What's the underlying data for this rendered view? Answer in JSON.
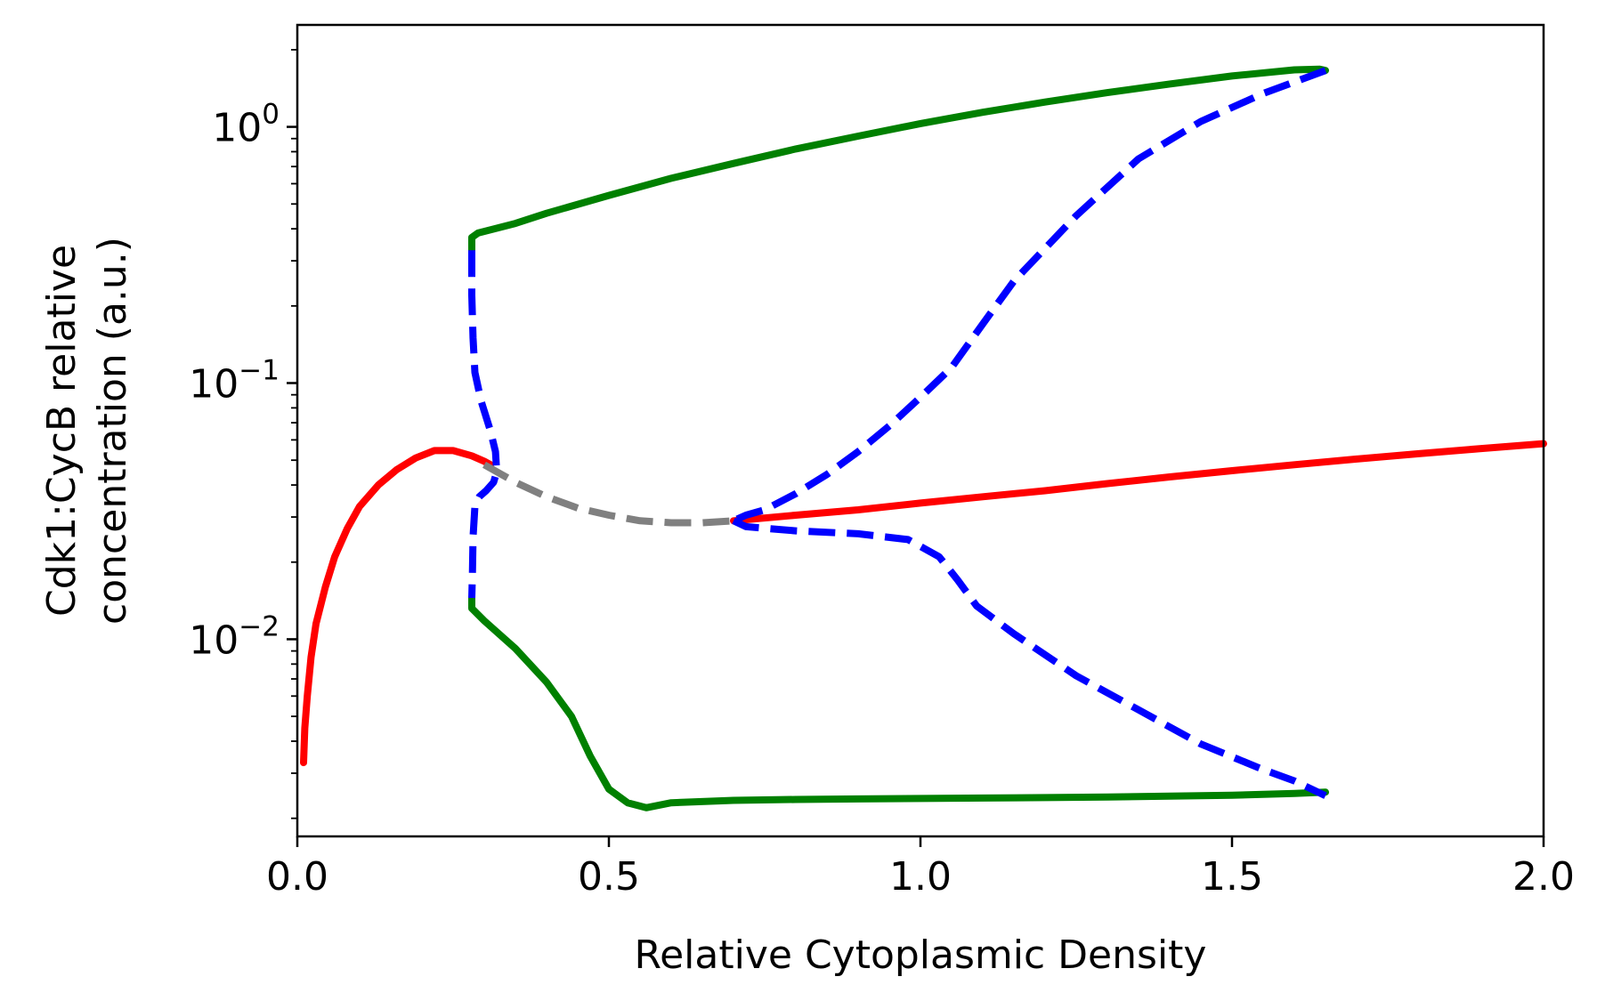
{
  "chart_data": {
    "type": "line",
    "title": "",
    "xlabel": "Relative Cytoplasmic Density",
    "ylabel_lines": [
      "Cdk1:CycB relative",
      "concentration (a.u.)"
    ],
    "xlim": [
      0.0,
      2.0
    ],
    "ylim": [
      0.0017,
      2.5
    ],
    "yscale": "log",
    "grid": false,
    "legend": "none",
    "x_ticks": [
      {
        "value": 0.0,
        "label": "0.0"
      },
      {
        "value": 0.5,
        "label": "0.5"
      },
      {
        "value": 1.0,
        "label": "1.0"
      },
      {
        "value": 1.5,
        "label": "1.5"
      },
      {
        "value": 2.0,
        "label": "2.0"
      }
    ],
    "y_ticks": [
      {
        "value": 1.0,
        "base": "10",
        "exp": "0"
      },
      {
        "value": 0.1,
        "base": "10",
        "exp": "−1"
      },
      {
        "value": 0.01,
        "base": "10",
        "exp": "−2"
      }
    ],
    "series": [
      {
        "key": "stable-steady-state-low",
        "color": "#ff0000",
        "dash": "solid",
        "points": [
          [
            0.01,
            0.0033
          ],
          [
            0.012,
            0.0045
          ],
          [
            0.016,
            0.006
          ],
          [
            0.022,
            0.0085
          ],
          [
            0.03,
            0.0115
          ],
          [
            0.045,
            0.016
          ],
          [
            0.06,
            0.021
          ],
          [
            0.08,
            0.027
          ],
          [
            0.1,
            0.033
          ],
          [
            0.13,
            0.04
          ],
          [
            0.16,
            0.046
          ],
          [
            0.19,
            0.051
          ],
          [
            0.22,
            0.0545
          ],
          [
            0.25,
            0.0545
          ],
          [
            0.28,
            0.052
          ],
          [
            0.3,
            0.0495
          ],
          [
            0.31,
            0.048
          ]
        ]
      },
      {
        "key": "stable-steady-state-high",
        "color": "#ff0000",
        "dash": "solid",
        "points": [
          [
            0.7,
            0.029
          ],
          [
            0.8,
            0.0305
          ],
          [
            0.9,
            0.032
          ],
          [
            1.0,
            0.034
          ],
          [
            1.1,
            0.036
          ],
          [
            1.2,
            0.038
          ],
          [
            1.3,
            0.0405
          ],
          [
            1.4,
            0.043
          ],
          [
            1.5,
            0.0455
          ],
          [
            1.6,
            0.048
          ],
          [
            1.7,
            0.0505
          ],
          [
            1.8,
            0.053
          ],
          [
            1.9,
            0.0555
          ],
          [
            2.0,
            0.058
          ]
        ]
      },
      {
        "key": "unstable-steady-state",
        "color": "#808080",
        "dash": "dashed",
        "points": [
          [
            0.3,
            0.048
          ],
          [
            0.35,
            0.041
          ],
          [
            0.4,
            0.036
          ],
          [
            0.45,
            0.0325
          ],
          [
            0.5,
            0.0305
          ],
          [
            0.55,
            0.029
          ],
          [
            0.6,
            0.0285
          ],
          [
            0.65,
            0.0285
          ],
          [
            0.7,
            0.029
          ]
        ]
      },
      {
        "key": "stable-limit-cycle-max",
        "color": "#008000",
        "dash": "solid",
        "points": [
          [
            0.28,
            0.3
          ],
          [
            0.28,
            0.37
          ],
          [
            0.29,
            0.385
          ],
          [
            0.35,
            0.42
          ],
          [
            0.4,
            0.46
          ],
          [
            0.5,
            0.54
          ],
          [
            0.6,
            0.63
          ],
          [
            0.7,
            0.72
          ],
          [
            0.8,
            0.82
          ],
          [
            0.9,
            0.92
          ],
          [
            1.0,
            1.03
          ],
          [
            1.1,
            1.14
          ],
          [
            1.2,
            1.25
          ],
          [
            1.3,
            1.36
          ],
          [
            1.4,
            1.47
          ],
          [
            1.5,
            1.58
          ],
          [
            1.6,
            1.67
          ],
          [
            1.64,
            1.68
          ],
          [
            1.65,
            1.66
          ]
        ]
      },
      {
        "key": "stable-limit-cycle-min",
        "color": "#008000",
        "dash": "solid",
        "points": [
          [
            0.28,
            0.0145
          ],
          [
            0.28,
            0.0132
          ],
          [
            0.3,
            0.0118
          ],
          [
            0.35,
            0.0092
          ],
          [
            0.4,
            0.0068
          ],
          [
            0.44,
            0.005
          ],
          [
            0.47,
            0.0035
          ],
          [
            0.5,
            0.0026
          ],
          [
            0.53,
            0.0023
          ],
          [
            0.56,
            0.0022
          ],
          [
            0.6,
            0.0023
          ],
          [
            0.7,
            0.00235
          ],
          [
            0.8,
            0.00237
          ],
          [
            0.9,
            0.00238
          ],
          [
            1.0,
            0.00239
          ],
          [
            1.1,
            0.0024
          ],
          [
            1.2,
            0.00241
          ],
          [
            1.3,
            0.00242
          ],
          [
            1.4,
            0.00244
          ],
          [
            1.5,
            0.00246
          ],
          [
            1.6,
            0.0025
          ],
          [
            1.65,
            0.00253
          ]
        ]
      },
      {
        "key": "unstable-limit-cycle-max",
        "color": "#0000ff",
        "dash": "dashed",
        "points": [
          [
            1.65,
            1.66
          ],
          [
            1.55,
            1.35
          ],
          [
            1.45,
            1.05
          ],
          [
            1.35,
            0.75
          ],
          [
            1.25,
            0.45
          ],
          [
            1.15,
            0.25
          ],
          [
            1.1,
            0.17
          ],
          [
            1.05,
            0.115
          ],
          [
            1.0,
            0.088
          ],
          [
            0.95,
            0.068
          ],
          [
            0.9,
            0.054
          ],
          [
            0.85,
            0.044
          ],
          [
            0.8,
            0.037
          ],
          [
            0.75,
            0.032
          ],
          [
            0.72,
            0.0305
          ],
          [
            0.7,
            0.029
          ]
        ]
      },
      {
        "key": "unstable-limit-cycle-min",
        "color": "#0000ff",
        "dash": "dashed",
        "points": [
          [
            0.7,
            0.029
          ],
          [
            0.72,
            0.0275
          ],
          [
            0.8,
            0.0265
          ],
          [
            0.9,
            0.0258
          ],
          [
            0.98,
            0.0245
          ],
          [
            1.03,
            0.021
          ],
          [
            1.06,
            0.017
          ],
          [
            1.09,
            0.0135
          ],
          [
            1.15,
            0.0105
          ],
          [
            1.25,
            0.0072
          ],
          [
            1.35,
            0.0053
          ],
          [
            1.45,
            0.0039
          ],
          [
            1.55,
            0.0031
          ],
          [
            1.6,
            0.0028
          ],
          [
            1.65,
            0.00245
          ]
        ]
      },
      {
        "key": "unstable-limit-cycle-fold",
        "color": "#0000ff",
        "dash": "dashed",
        "points": [
          [
            0.28,
            0.33
          ],
          [
            0.28,
            0.22
          ],
          [
            0.282,
            0.15
          ],
          [
            0.285,
            0.11
          ],
          [
            0.295,
            0.085
          ],
          [
            0.31,
            0.065
          ],
          [
            0.318,
            0.054
          ],
          [
            0.32,
            0.045
          ],
          [
            0.315,
            0.041
          ],
          [
            0.303,
            0.038
          ],
          [
            0.292,
            0.036
          ],
          [
            0.285,
            0.033
          ],
          [
            0.282,
            0.025
          ],
          [
            0.281,
            0.018
          ],
          [
            0.28,
            0.0145
          ]
        ]
      }
    ]
  }
}
